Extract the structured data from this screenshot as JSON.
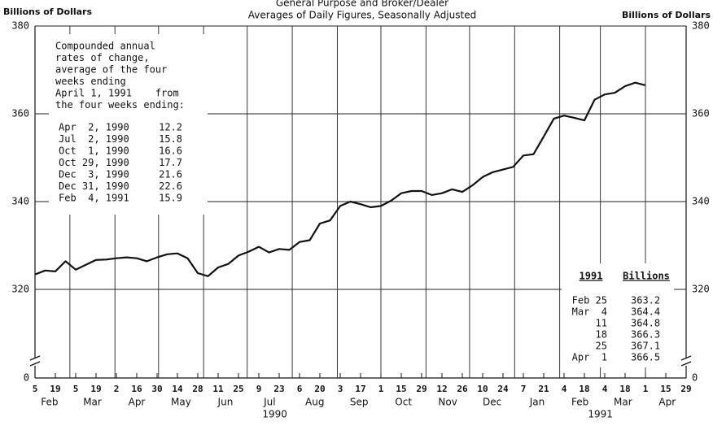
{
  "chart_data": {
    "type": "line",
    "title": "General Purpose and Broker/Dealer",
    "subtitle": "Averages of Daily Figures, Seasonally Adjusted",
    "ylabel_left": "Billions of Dollars",
    "ylabel_right": "Billions of Dollars",
    "x": [
      "1990-02-05",
      "1990-02-12",
      "1990-02-19",
      "1990-02-26",
      "1990-03-05",
      "1990-03-12",
      "1990-03-19",
      "1990-03-26",
      "1990-04-02",
      "1990-04-09",
      "1990-04-16",
      "1990-04-23",
      "1990-04-30",
      "1990-05-07",
      "1990-05-14",
      "1990-05-21",
      "1990-05-28",
      "1990-06-04",
      "1990-06-11",
      "1990-06-18",
      "1990-06-25",
      "1990-07-02",
      "1990-07-09",
      "1990-07-16",
      "1990-07-23",
      "1990-07-30",
      "1990-08-06",
      "1990-08-13",
      "1990-08-20",
      "1990-08-27",
      "1990-09-03",
      "1990-09-10",
      "1990-09-17",
      "1990-09-24",
      "1990-10-01",
      "1990-10-08",
      "1990-10-15",
      "1990-10-22",
      "1990-10-29",
      "1990-11-05",
      "1990-11-12",
      "1990-11-19",
      "1990-11-26",
      "1990-12-03",
      "1990-12-10",
      "1990-12-17",
      "1990-12-24",
      "1990-12-31",
      "1991-01-07",
      "1991-01-14",
      "1991-01-21",
      "1991-01-28",
      "1991-02-04",
      "1991-02-11",
      "1991-02-18",
      "1991-02-25",
      "1991-03-04",
      "1991-03-11",
      "1991-03-18",
      "1991-03-25",
      "1991-04-01"
    ],
    "series": [
      {
        "color": "#111111",
        "values": [
          323.4,
          324.3,
          324.1,
          326.4,
          324.5,
          325.6,
          326.7,
          326.8,
          327.1,
          327.3,
          327.1,
          326.4,
          327.3,
          328.0,
          328.2,
          327.1,
          323.7,
          323.0,
          325.0,
          325.8,
          327.7,
          328.6,
          329.7,
          328.4,
          329.2,
          329.0,
          330.8,
          331.2,
          335.0,
          335.7,
          339.0,
          340.0,
          339.4,
          338.7,
          339.0,
          340.2,
          341.9,
          342.4,
          342.4,
          341.5,
          341.9,
          342.8,
          342.2,
          343.7,
          345.6,
          346.7,
          347.3,
          347.9,
          350.5,
          350.8,
          354.8,
          358.9,
          359.6,
          359.1,
          358.5,
          363.2,
          364.4,
          364.8,
          366.3,
          367.1,
          366.5
        ]
      }
    ],
    "xlim": [
      "1990-02-05",
      "1991-04-29"
    ],
    "xticks": [
      {
        "value": "1990-02-05",
        "label": "5"
      },
      {
        "value": "1990-02-19",
        "label": "19"
      },
      {
        "value": "1990-03-05",
        "label": "5"
      },
      {
        "value": "1990-03-19",
        "label": "19"
      },
      {
        "value": "1990-04-02",
        "label": "2"
      },
      {
        "value": "1990-04-16",
        "label": "16"
      },
      {
        "value": "1990-04-30",
        "label": "30"
      },
      {
        "value": "1990-05-14",
        "label": "14"
      },
      {
        "value": "1990-05-28",
        "label": "28"
      },
      {
        "value": "1990-06-11",
        "label": "11"
      },
      {
        "value": "1990-06-25",
        "label": "25"
      },
      {
        "value": "1990-07-09",
        "label": "9"
      },
      {
        "value": "1990-07-23",
        "label": "23"
      },
      {
        "value": "1990-08-06",
        "label": "6"
      },
      {
        "value": "1990-08-20",
        "label": "20"
      },
      {
        "value": "1990-09-03",
        "label": "3"
      },
      {
        "value": "1990-09-17",
        "label": "17"
      },
      {
        "value": "1990-10-01",
        "label": "1"
      },
      {
        "value": "1990-10-15",
        "label": "15"
      },
      {
        "value": "1990-10-29",
        "label": "29"
      },
      {
        "value": "1990-11-12",
        "label": "12"
      },
      {
        "value": "1990-11-26",
        "label": "26"
      },
      {
        "value": "1990-12-10",
        "label": "10"
      },
      {
        "value": "1990-12-24",
        "label": "24"
      },
      {
        "value": "1991-01-07",
        "label": "7"
      },
      {
        "value": "1991-01-21",
        "label": "21"
      },
      {
        "value": "1991-02-04",
        "label": "4"
      },
      {
        "value": "1991-02-18",
        "label": "18"
      },
      {
        "value": "1991-03-04",
        "label": "4"
      },
      {
        "value": "1991-03-18",
        "label": "18"
      },
      {
        "value": "1991-04-01",
        "label": "1"
      },
      {
        "value": "1991-04-15",
        "label": "15"
      },
      {
        "value": "1991-04-29",
        "label": "29"
      }
    ],
    "months": [
      {
        "value": "1990-02",
        "label": "Feb"
      },
      {
        "value": "1990-03",
        "label": "Mar"
      },
      {
        "value": "1990-04",
        "label": "Apr"
      },
      {
        "value": "1990-05",
        "label": "May"
      },
      {
        "value": "1990-06",
        "label": "Jun"
      },
      {
        "value": "1990-07",
        "label": "Jul"
      },
      {
        "value": "1990-08",
        "label": "Aug"
      },
      {
        "value": "1990-09",
        "label": "Sep"
      },
      {
        "value": "1990-10",
        "label": "Oct"
      },
      {
        "value": "1990-11",
        "label": "Nov"
      },
      {
        "value": "1990-12",
        "label": "Dec"
      },
      {
        "value": "1991-01",
        "label": "Jan"
      },
      {
        "value": "1991-02",
        "label": "Feb"
      },
      {
        "value": "1991-03",
        "label": "Mar"
      },
      {
        "value": "1991-04",
        "label": "Apr"
      }
    ],
    "years": [
      "1990",
      "1991"
    ],
    "ylim": [
      0,
      380
    ],
    "axis_break": [
      0,
      320
    ],
    "yticks": [
      0,
      320,
      340,
      360,
      380
    ],
    "grid": true,
    "annotation": {
      "lines": [
        "Compounded annual",
        "rates of change,",
        "average of the four",
        "weeks ending",
        "April 1, 1991    from",
        "the four weeks ending:"
      ],
      "rows": [
        {
          "date": "Apr  2, 1990",
          "rate": 12.2
        },
        {
          "date": "Jul  2, 1990",
          "rate": 15.8
        },
        {
          "date": "Oct  1, 1990",
          "rate": 16.6
        },
        {
          "date": "Oct 29, 1990",
          "rate": 17.7
        },
        {
          "date": "Dec  3, 1990",
          "rate": 21.6
        },
        {
          "date": "Dec 31, 1990",
          "rate": 22.6
        },
        {
          "date": "Feb  4, 1991",
          "rate": 15.9
        }
      ]
    },
    "table": {
      "header": [
        "1991",
        "Billions"
      ],
      "rows": [
        [
          "Feb 25",
          "363.2"
        ],
        [
          "Mar  4",
          "364.4"
        ],
        [
          "11",
          "364.8"
        ],
        [
          "18",
          "366.3"
        ],
        [
          "25",
          "367.1"
        ],
        [
          "Apr  1",
          "366.5"
        ]
      ]
    }
  }
}
